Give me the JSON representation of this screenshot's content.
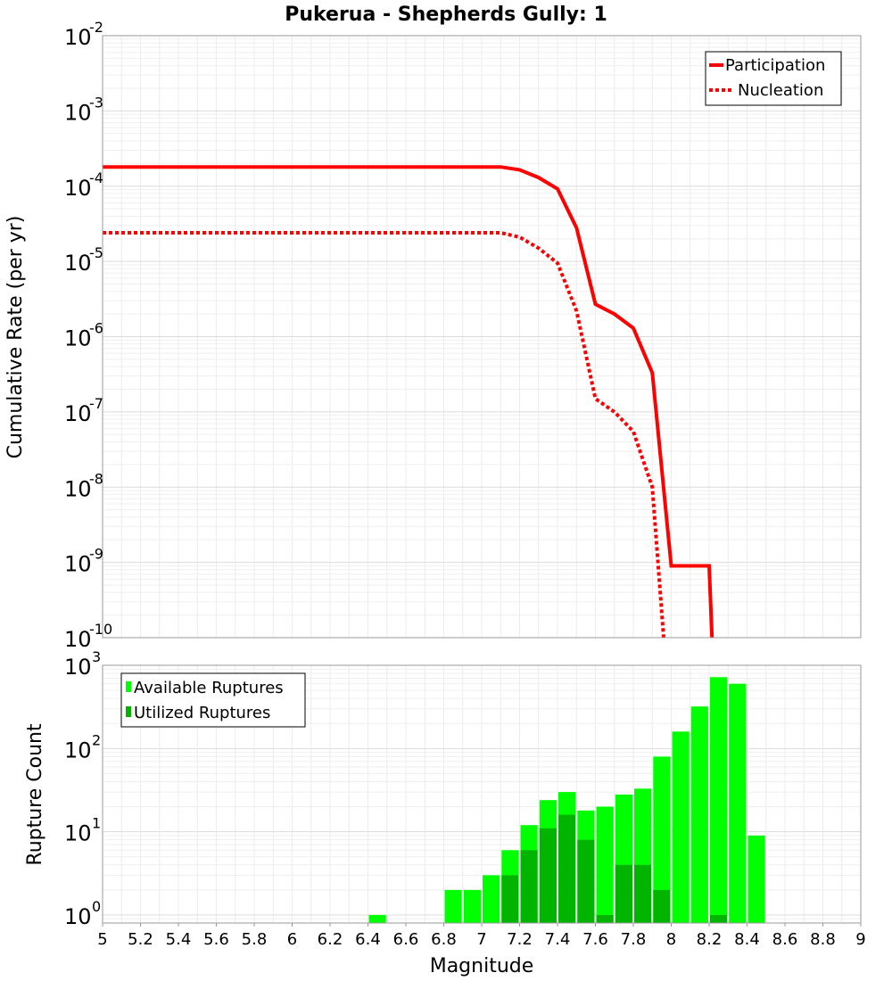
{
  "chart_data": [
    {
      "type": "line",
      "title": "Pukerua - Shepherds Gully: 1",
      "xlabel": "",
      "ylabel": "Cumulative Rate (per yr)",
      "xlim": [
        5,
        9
      ],
      "ylim": [
        1e-10,
        0.01
      ],
      "yscale": "log",
      "grid": true,
      "legend_position": "top-right",
      "ytick_exponents": [
        "-10",
        "-9",
        "-8",
        "-7",
        "-6",
        "-5",
        "-4",
        "-3",
        "-2"
      ],
      "ytick_base": "10",
      "series": [
        {
          "name": "Participation",
          "style": "solid",
          "color": "#ff0000",
          "x": [
            5.0,
            7.1,
            7.2,
            7.3,
            7.4,
            7.5,
            7.6,
            7.7,
            7.8,
            7.9,
            8.0,
            8.1,
            8.2,
            8.215
          ],
          "y": [
            0.00018,
            0.00018,
            0.000165,
            0.00013,
            9.2e-05,
            2.8e-05,
            2.7e-06,
            2e-06,
            1.3e-06,
            3.3e-07,
            9e-10,
            9e-10,
            9e-10,
            1e-10
          ]
        },
        {
          "name": "Nucleation",
          "style": "dotted",
          "color": "#ff0000",
          "x": [
            5.0,
            7.1,
            7.2,
            7.3,
            7.4,
            7.5,
            7.6,
            7.7,
            7.8,
            7.9,
            7.96
          ],
          "y": [
            2.4e-05,
            2.4e-05,
            2.1e-05,
            1.5e-05,
            9.5e-06,
            2.2e-06,
            1.5e-07,
            1e-07,
            5.5e-08,
            1e-08,
            1e-10
          ]
        }
      ]
    },
    {
      "type": "bar",
      "title": "",
      "xlabel": "Magnitude",
      "ylabel": "Rupture Count",
      "xlim": [
        5,
        9
      ],
      "ylim": [
        0.8,
        1000
      ],
      "yscale": "log",
      "grid": true,
      "legend_position": "top-left",
      "bar_width": 0.1,
      "xtick_labels": [
        "5",
        "5.2",
        "5.4",
        "5.6",
        "5.8",
        "6",
        "6.2",
        "6.4",
        "6.6",
        "6.8",
        "7",
        "7.2",
        "7.4",
        "7.6",
        "7.8",
        "8",
        "8.2",
        "8.4",
        "8.6",
        "8.8",
        "9"
      ],
      "ytick_exponents": [
        "0",
        "1",
        "2",
        "3"
      ],
      "ytick_base": "10",
      "categories": [
        6.45,
        6.85,
        6.95,
        7.05,
        7.15,
        7.25,
        7.35,
        7.45,
        7.55,
        7.65,
        7.75,
        7.85,
        7.95,
        8.05,
        8.15,
        8.25,
        8.35,
        8.45
      ],
      "series": [
        {
          "name": "Available Ruptures",
          "color": "#00ff00",
          "values": [
            1,
            2,
            2,
            3,
            6,
            12,
            24,
            30,
            18,
            20,
            28,
            33,
            80,
            160,
            320,
            720,
            600,
            9
          ]
        },
        {
          "name": "Utilized Ruptures",
          "color": "#00b400",
          "values": [
            0,
            0,
            0,
            0,
            3,
            6,
            11,
            16,
            8,
            1,
            4,
            4,
            2,
            0,
            0,
            1,
            0,
            0
          ]
        }
      ]
    }
  ]
}
